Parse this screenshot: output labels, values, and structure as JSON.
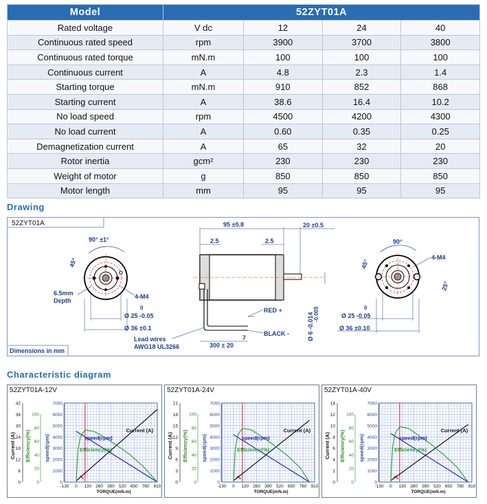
{
  "spec_table": {
    "header": {
      "model_label": "Model",
      "model_name": "52ZYT01A"
    },
    "rows": [
      {
        "param": "Rated voltage",
        "unit": "V dc",
        "v1": "12",
        "v2": "24",
        "v3": "40"
      },
      {
        "param": "Continuous rated speed",
        "unit": "rpm",
        "v1": "3900",
        "v2": "3700",
        "v3": "3800"
      },
      {
        "param": "Continuous rated torque",
        "unit": "mN.m",
        "v1": "100",
        "v2": "100",
        "v3": "100"
      },
      {
        "param": "Continuous current",
        "unit": "A",
        "v1": "4.8",
        "v2": "2.3",
        "v3": "1.4"
      },
      {
        "param": "Starting torque",
        "unit": "mN.m",
        "v1": "910",
        "v2": "852",
        "v3": "868"
      },
      {
        "param": "Starting current",
        "unit": "A",
        "v1": "38.6",
        "v2": "16.4",
        "v3": "10.2"
      },
      {
        "param": "No load speed",
        "unit": "rpm",
        "v1": "4500",
        "v2": "4200",
        "v3": "4300"
      },
      {
        "param": "No load current",
        "unit": "A",
        "v1": "0.60",
        "v2": "0.35",
        "v3": "0.25"
      },
      {
        "param": "Demagnetization current",
        "unit": "A",
        "v1": "65",
        "v2": "32",
        "v3": "20"
      },
      {
        "param": "Rotor inertia",
        "unit": "gcm²",
        "v1": "230",
        "v2": "230",
        "v3": "230"
      },
      {
        "param": "Weight of motor",
        "unit": "g",
        "v1": "850",
        "v2": "850",
        "v3": "850"
      },
      {
        "param": "Motor length",
        "unit": "mm",
        "v1": "95",
        "v2": "95",
        "v3": "95"
      }
    ]
  },
  "drawing": {
    "section_title": "Drawing",
    "model_tag": "52ZYT01A",
    "footer": "Dimensions in mm",
    "labels": {
      "angle_left": "90° ±1°",
      "angle45_left": "45°",
      "depth": "6.5mm",
      "depth_word": "Depth",
      "thread_left": "4-M4",
      "dia25_left": "Ø 25 -0.05",
      "dia25_tol": "0",
      "dia36_left": "Ø 36 ±0.1",
      "lead1": "Lead wires",
      "lead2": "AWG18 UL3266",
      "len95": "95 ±0.8",
      "len20": "20 ±0.5",
      "d2_5a": "2.5",
      "d2_5b": "2.5",
      "red": "RED +",
      "black": "BLACK -",
      "len300": "300 ± 20",
      "d7": "7",
      "shaft_dia": "Ø 6 -0.014",
      "shaft_tol": "-0.005",
      "angle_right": "90°",
      "angle45_right": "45°",
      "thread_right": "4-M4",
      "angle25": "25°",
      "dia25_right": "Ø 25 -0.05",
      "dia25r_tol": "0",
      "dia36_right": "Ø 36 ±0.10"
    }
  },
  "characteristic": {
    "section_title": "Characteristic diagram"
  },
  "chart_data": [
    {
      "type": "line",
      "title": "52ZYT01A-12V",
      "xlabel": "TORQUE(mN.m)",
      "x_ticks": [
        "-130",
        "0",
        "130",
        "260",
        "390",
        "520",
        "650",
        "780",
        "910"
      ],
      "speed_ticks": [
        "0",
        "1000",
        "2000",
        "3000",
        "4000",
        "5000",
        "6000",
        "7000"
      ],
      "current_ticks": [
        "0",
        "6",
        "12",
        "18",
        "24",
        "30",
        "36",
        "42"
      ],
      "eff_ticks": [
        "0",
        "20",
        "40",
        "60",
        "80",
        "100"
      ],
      "axis_labels": {
        "current": "Current (A)",
        "efficiency": "Efficiency(%)",
        "speed": "speed(rpm)"
      },
      "annotations": {
        "speed": "speed(rpm)",
        "current": "Current (A)",
        "efficiency": "Efficiency(%)"
      },
      "xlim": [
        -130,
        910
      ],
      "speed_lim": [
        0,
        7000
      ],
      "current_lim": [
        0,
        42
      ],
      "eff_lim": [
        0,
        100
      ],
      "rated_torque": 100,
      "series": [
        {
          "name": "speed(rpm)",
          "x": [
            0,
            910
          ],
          "y": [
            4500,
            0
          ]
        },
        {
          "name": "Current (A)",
          "x": [
            0,
            910
          ],
          "y": [
            0.6,
            38.6
          ]
        },
        {
          "name": "Efficiency(%)",
          "x": [
            0,
            20,
            50,
            100,
            200,
            300,
            450,
            600,
            750,
            910
          ],
          "y": [
            0,
            40,
            58,
            66,
            64,
            58,
            47,
            35,
            20,
            0
          ]
        }
      ]
    },
    {
      "type": "line",
      "title": "52ZYT01A-24V",
      "xlabel": "TORQUE(mN.m)",
      "x_ticks": [
        "-130",
        "0",
        "130",
        "260",
        "390",
        "520",
        "650",
        "780",
        "910"
      ],
      "speed_ticks": [
        "0",
        "1000",
        "2000",
        "3000",
        "4000",
        "5000",
        "6000",
        "7000"
      ],
      "current_ticks": [
        "0",
        "3",
        "6",
        "9",
        "12",
        "15",
        "18",
        "21"
      ],
      "eff_ticks": [
        "0",
        "20",
        "40",
        "60",
        "80",
        "100"
      ],
      "axis_labels": {
        "current": "Current (A)",
        "efficiency": "Efficiency(%)",
        "speed": "speed(rpm)"
      },
      "annotations": {
        "speed": "speed(rpm)",
        "current": "Current (A)",
        "efficiency": "Efficiency(%)"
      },
      "xlim": [
        -130,
        910
      ],
      "speed_lim": [
        0,
        7000
      ],
      "current_lim": [
        0,
        21
      ],
      "eff_lim": [
        0,
        100
      ],
      "rated_torque": 100,
      "series": [
        {
          "name": "speed(rpm)",
          "x": [
            0,
            852
          ],
          "y": [
            4200,
            0
          ]
        },
        {
          "name": "Current (A)",
          "x": [
            0,
            852
          ],
          "y": [
            0.35,
            16.4
          ]
        },
        {
          "name": "Efficiency(%)",
          "x": [
            0,
            20,
            50,
            100,
            200,
            300,
            450,
            600,
            750,
            852
          ],
          "y": [
            0,
            42,
            60,
            68,
            66,
            59,
            47,
            34,
            18,
            0
          ]
        }
      ]
    },
    {
      "type": "line",
      "title": "52ZYT01A-40V",
      "xlabel": "TORQUE(mN.m)",
      "x_ticks": [
        "-130",
        "0",
        "130",
        "260",
        "390",
        "520",
        "650",
        "780",
        "910"
      ],
      "speed_ticks": [
        "0",
        "1000",
        "2000",
        "3000",
        "4000",
        "5000",
        "6000",
        "7000"
      ],
      "current_ticks": [
        "0",
        "2",
        "4",
        "6",
        "8",
        "10",
        "12",
        "14"
      ],
      "eff_ticks": [
        "0",
        "20",
        "40",
        "60",
        "80",
        "100"
      ],
      "axis_labels": {
        "current": "Current (A)",
        "efficiency": "Efficiency(%)",
        "speed": "speed(rpm)"
      },
      "annotations": {
        "speed": "speed(rpm)",
        "current": "Current (A)",
        "efficiency": "Efficiency(%)"
      },
      "xlim": [
        -130,
        910
      ],
      "speed_lim": [
        0,
        7000
      ],
      "current_lim": [
        0,
        14
      ],
      "eff_lim": [
        0,
        100
      ],
      "rated_torque": 100,
      "series": [
        {
          "name": "speed(rpm)",
          "x": [
            0,
            868
          ],
          "y": [
            4300,
            0
          ]
        },
        {
          "name": "Current (A)",
          "x": [
            0,
            868
          ],
          "y": [
            0.25,
            10.2
          ]
        },
        {
          "name": "Efficiency(%)",
          "x": [
            0,
            20,
            50,
            100,
            200,
            300,
            450,
            600,
            750,
            868
          ],
          "y": [
            0,
            44,
            62,
            70,
            68,
            60,
            48,
            34,
            18,
            0
          ]
        }
      ]
    }
  ]
}
